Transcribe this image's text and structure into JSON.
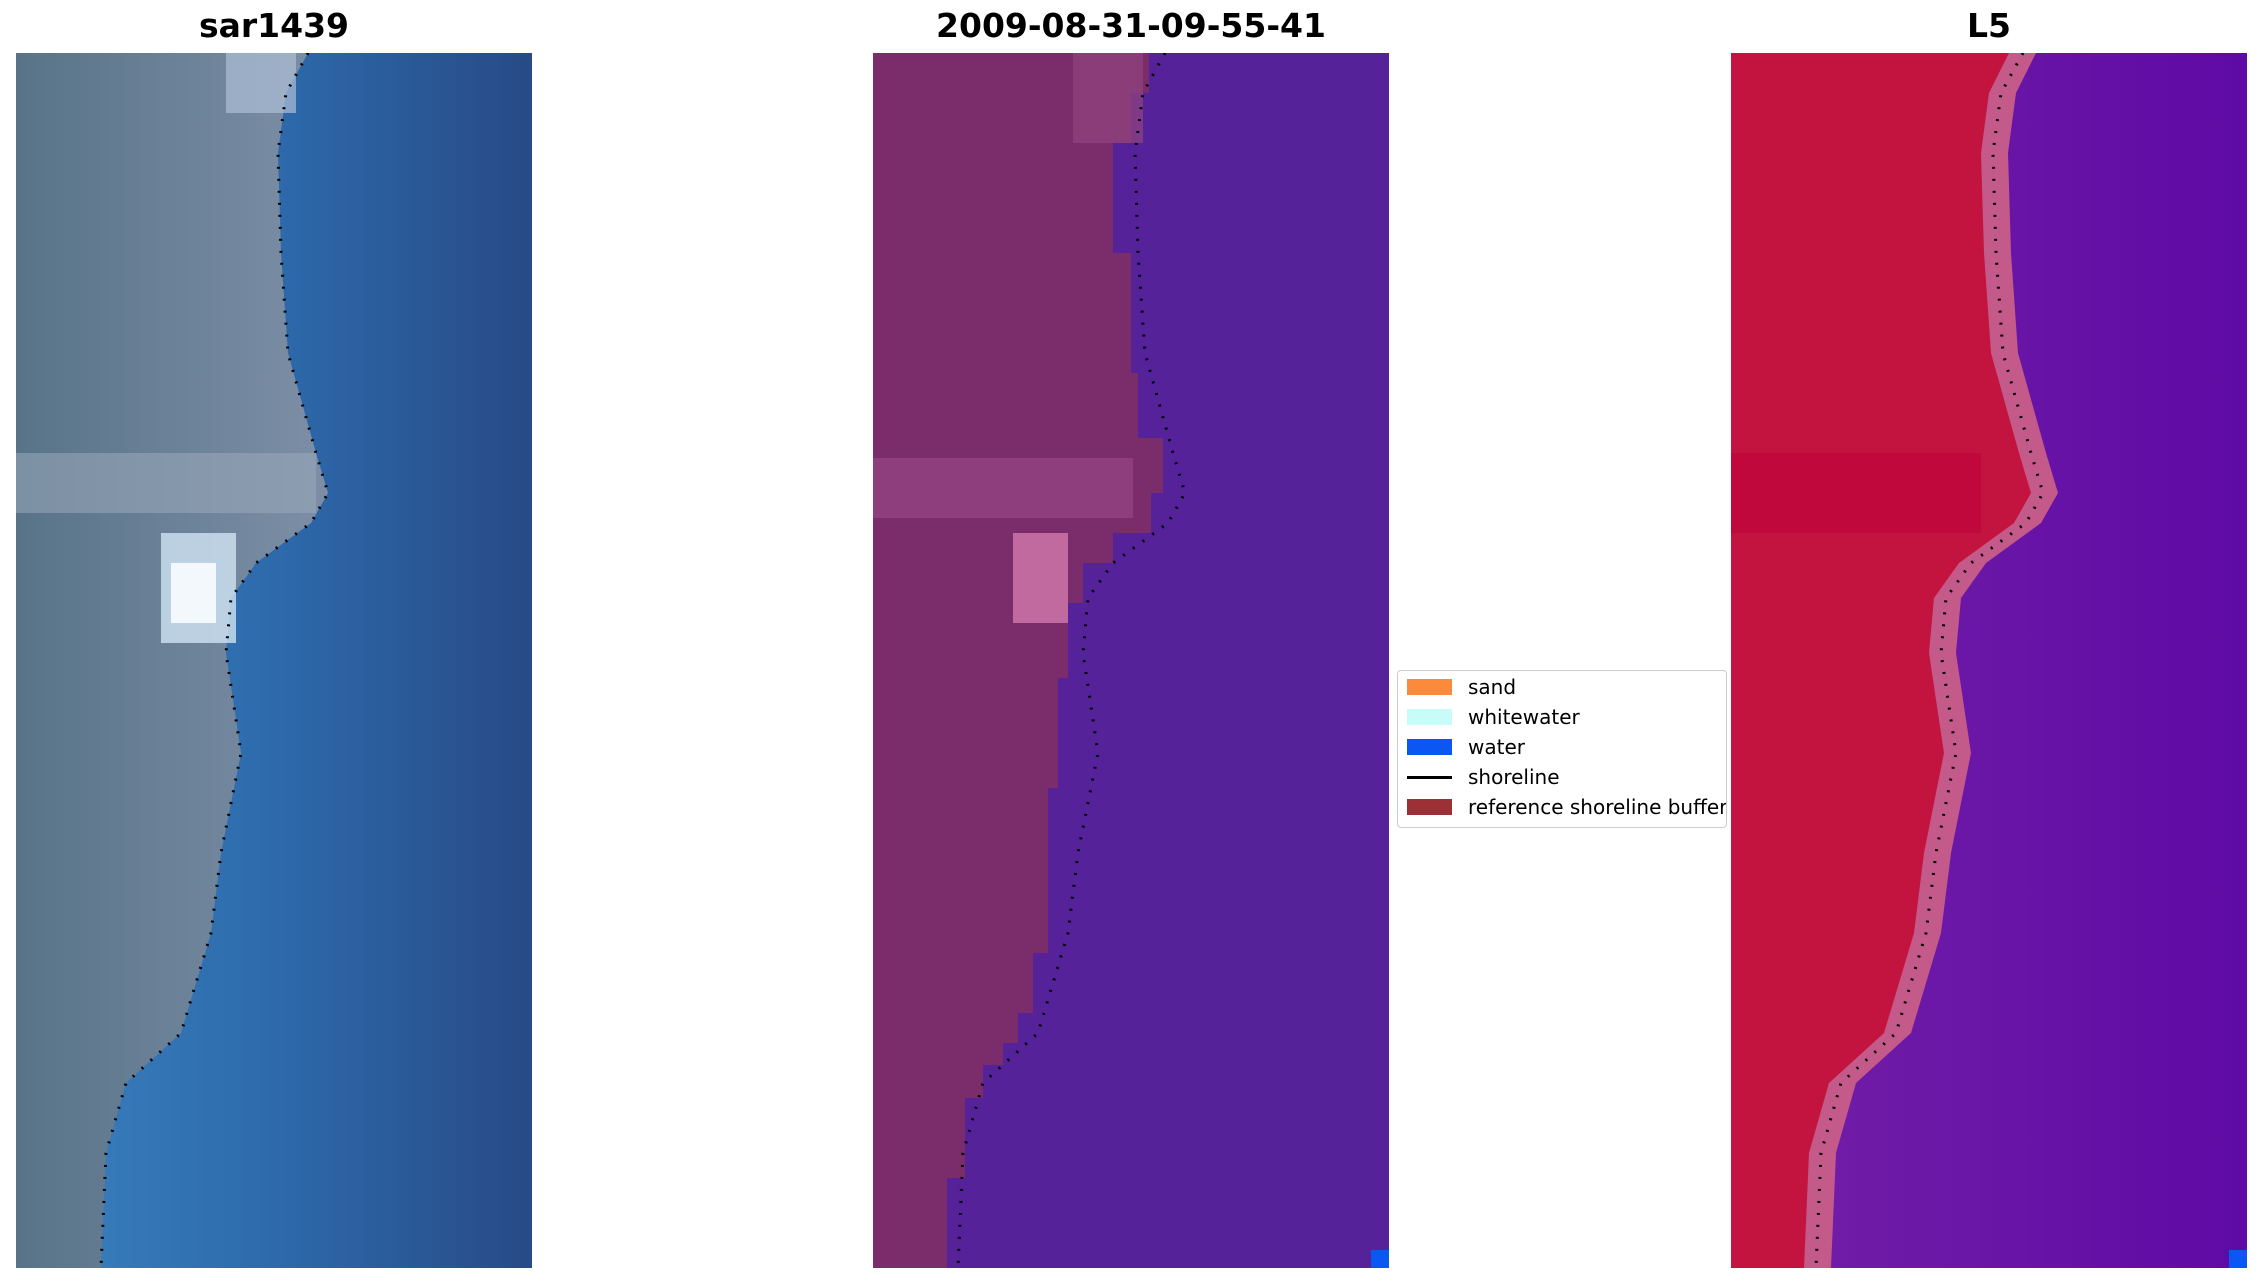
{
  "panels": [
    {
      "title": "sar1439"
    },
    {
      "title": "2009-08-31-09-55-41"
    },
    {
      "title": "L5"
    }
  ],
  "legend": {
    "items": [
      {
        "label": "sand",
        "color": "#fb8b3a",
        "kind": "patch"
      },
      {
        "label": "whitewater",
        "color": "#c8fcf8",
        "kind": "patch"
      },
      {
        "label": "water",
        "color": "#0b57f4",
        "kind": "patch"
      },
      {
        "label": "shoreline",
        "color": "#000000",
        "kind": "line"
      },
      {
        "label": "reference shoreline buffer",
        "color": "#9b3037",
        "kind": "patch"
      }
    ]
  },
  "colors": {
    "rgb_land": "#6f8296",
    "rgb_water": "#2b5f9e",
    "class_land": "#7a2d6a",
    "class_water": "#55229a",
    "index_land": "#c3143f",
    "index_water": "#6a14a6",
    "shoreline": "#000000"
  }
}
